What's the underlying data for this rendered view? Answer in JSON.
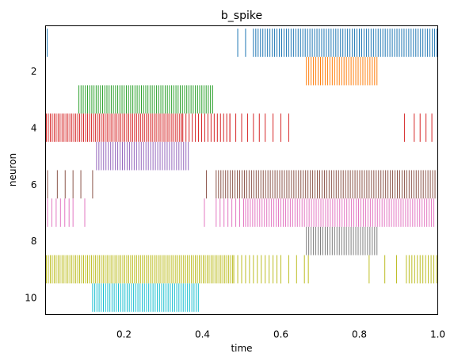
{
  "chart_data": {
    "type": "eventplot",
    "title": "b_spike",
    "xlabel": "time",
    "ylabel": "neuron",
    "xlim": [
      0.0,
      1.0
    ],
    "ylim": [
      10.6,
      0.4
    ],
    "xticks": [
      0.2,
      0.4,
      0.6,
      0.8,
      1.0
    ],
    "xtick_labels": [
      "0.2",
      "0.4",
      "0.6",
      "0.8",
      "1.0"
    ],
    "yticks": [
      2,
      4,
      6,
      8,
      10
    ],
    "ytick_labels": [
      "2",
      "4",
      "6",
      "8",
      "10"
    ],
    "grid": false,
    "series": [
      {
        "neuron": 1,
        "color": "#1f77b4",
        "segments": [
          {
            "from": 0.004,
            "to": 0.004,
            "step": 0.01
          },
          {
            "from": 0.49,
            "to": 0.51,
            "step": 0.02
          },
          {
            "from": 0.53,
            "to": 0.999,
            "step": 0.006
          }
        ]
      },
      {
        "neuron": 2,
        "color": "#ff7f0e",
        "segments": [
          {
            "from": 0.665,
            "to": 0.845,
            "step": 0.006
          }
        ]
      },
      {
        "neuron": 3,
        "color": "#2ca02c",
        "segments": [
          {
            "from": 0.085,
            "to": 0.43,
            "step": 0.0055
          }
        ]
      },
      {
        "neuron": 4,
        "color": "#d62728",
        "segments": [
          {
            "from": 0.002,
            "to": 0.35,
            "step": 0.005
          },
          {
            "from": 0.35,
            "to": 0.47,
            "step": 0.008
          },
          {
            "from": 0.47,
            "to": 0.56,
            "step": 0.015
          },
          {
            "from": 0.58,
            "to": 0.62,
            "step": 0.02
          },
          {
            "from": 0.915,
            "to": 0.915,
            "step": 0.01
          },
          {
            "from": 0.94,
            "to": 0.999,
            "step": 0.015
          }
        ]
      },
      {
        "neuron": 5,
        "color": "#9467bd",
        "segments": [
          {
            "from": 0.13,
            "to": 0.365,
            "step": 0.006
          }
        ]
      },
      {
        "neuron": 6,
        "color": "#8c564b",
        "segments": [
          {
            "from": 0.005,
            "to": 0.005,
            "step": 0.01
          },
          {
            "from": 0.03,
            "to": 0.09,
            "step": 0.02
          },
          {
            "from": 0.12,
            "to": 0.12,
            "step": 0.01
          },
          {
            "from": 0.41,
            "to": 0.41,
            "step": 0.01
          },
          {
            "from": 0.435,
            "to": 0.995,
            "step": 0.006
          }
        ]
      },
      {
        "neuron": 7,
        "color": "#e377c2",
        "segments": [
          {
            "from": 0.005,
            "to": 0.06,
            "step": 0.011
          },
          {
            "from": 0.07,
            "to": 0.07,
            "step": 0.01
          },
          {
            "from": 0.1,
            "to": 0.1,
            "step": 0.01
          },
          {
            "from": 0.405,
            "to": 0.405,
            "step": 0.01
          },
          {
            "from": 0.435,
            "to": 0.51,
            "step": 0.01
          },
          {
            "from": 0.51,
            "to": 0.995,
            "step": 0.006
          }
        ]
      },
      {
        "neuron": 8,
        "color": "#7f7f7f",
        "segments": [
          {
            "from": 0.665,
            "to": 0.848,
            "step": 0.006
          }
        ]
      },
      {
        "neuron": 9,
        "color": "#bcbd22",
        "segments": [
          {
            "from": 0.002,
            "to": 0.48,
            "step": 0.005
          },
          {
            "from": 0.48,
            "to": 0.6,
            "step": 0.01
          },
          {
            "from": 0.6,
            "to": 0.66,
            "step": 0.02
          },
          {
            "from": 0.67,
            "to": 0.67,
            "step": 0.01
          },
          {
            "from": 0.825,
            "to": 0.825,
            "step": 0.01
          },
          {
            "from": 0.865,
            "to": 0.865,
            "step": 0.01
          },
          {
            "from": 0.895,
            "to": 0.895,
            "step": 0.01
          },
          {
            "from": 0.92,
            "to": 0.999,
            "step": 0.007
          }
        ]
      },
      {
        "neuron": 10,
        "color": "#17becf",
        "segments": [
          {
            "from": 0.12,
            "to": 0.39,
            "step": 0.0055
          }
        ]
      }
    ]
  }
}
